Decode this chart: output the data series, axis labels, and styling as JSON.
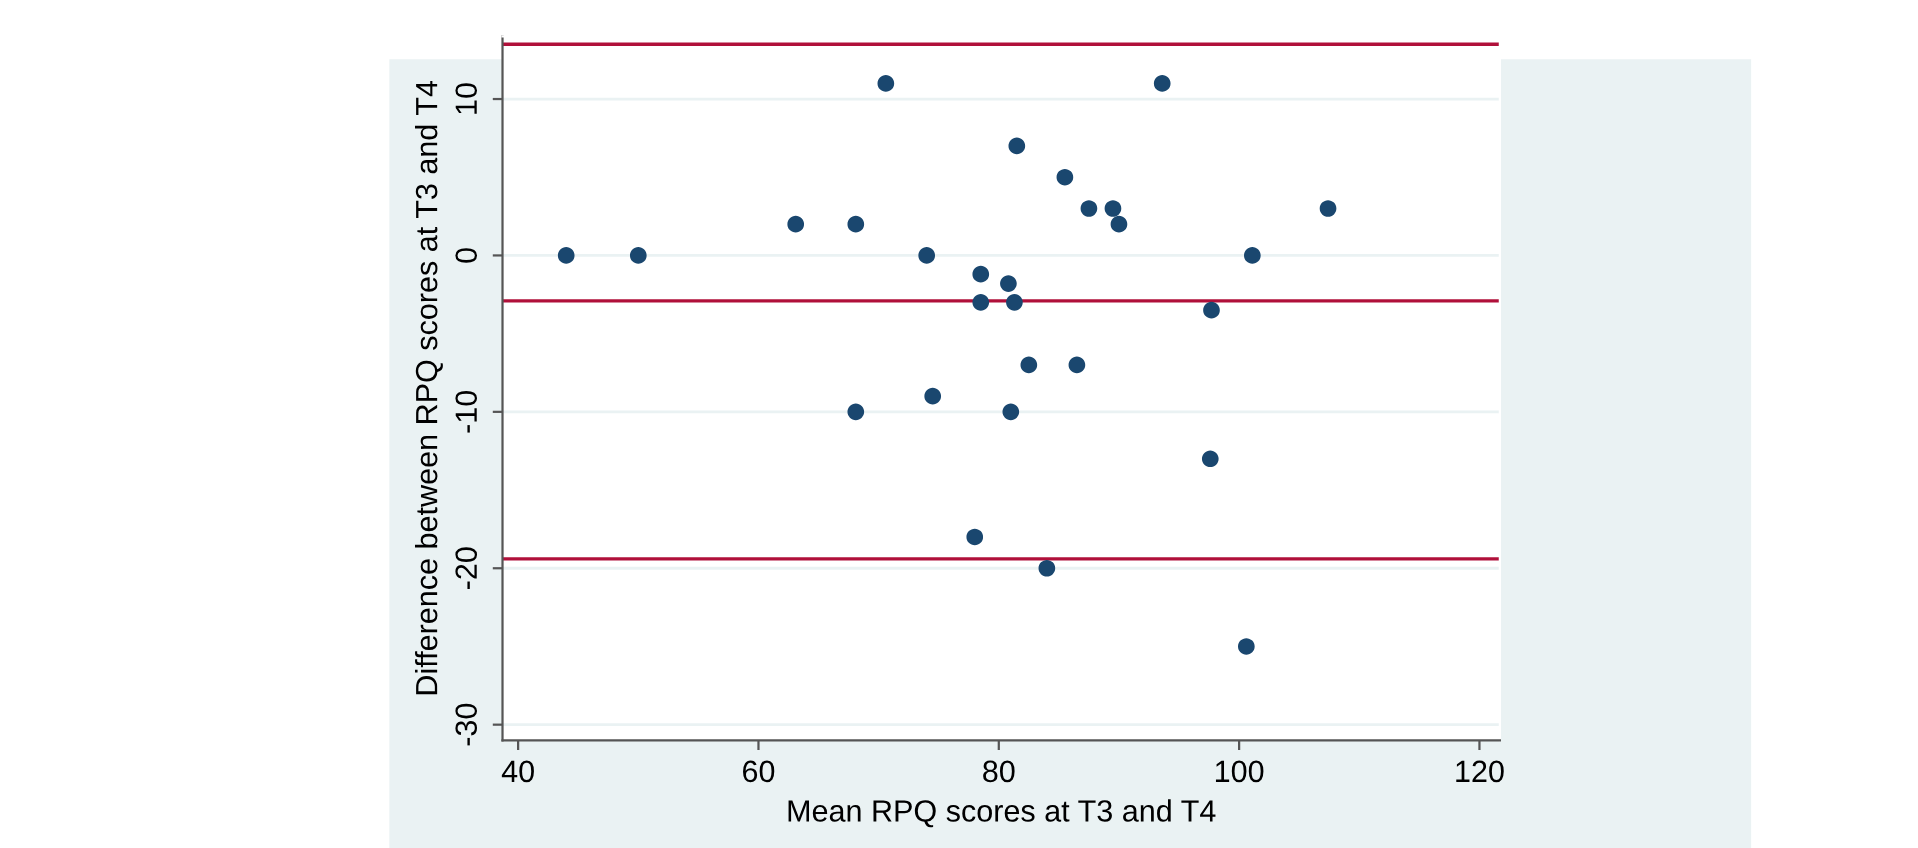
{
  "chart_data": {
    "type": "scatter",
    "xlabel": "Mean RPQ scores at T3 and T4",
    "ylabel": "Difference between RPQ scores at T3 and T4",
    "series": [
      {
        "color": "#1a476f",
        "x": [
          44,
          50,
          63.1,
          68.1,
          70.6,
          74,
          68.1,
          74.5,
          78.5,
          78.5,
          80.8,
          81.3,
          81.5,
          82.5,
          81,
          78,
          84,
          85.5,
          87.5,
          89.5,
          90,
          93.6,
          86.5,
          97.7,
          101.1,
          107.4,
          97.6,
          100.6
        ],
        "values": [
          0,
          0,
          2,
          2,
          11,
          0,
          -10,
          -9,
          -1.2,
          -3,
          -1.8,
          -3,
          7,
          -7,
          -10,
          -18,
          -20,
          5,
          3,
          3,
          2,
          11,
          -7,
          -3.5,
          0,
          3,
          -13,
          -25
        ]
      }
    ],
    "marker": "circle",
    "xlim": [
      38.7,
      121.7
    ],
    "ylim": [
      -31,
      14
    ],
    "xticks": [
      40,
      60,
      80,
      100,
      120
    ],
    "yticks": [
      {
        "value": -30,
        "label": "-30"
      },
      {
        "value": -20,
        "label": "-20"
      },
      {
        "value": -10,
        "label": "-10"
      },
      0,
      10
    ],
    "grid": "y",
    "ref_lines": [
      {
        "axis": "y",
        "value": 13.5,
        "color": "#b0103a"
      },
      {
        "axis": "y",
        "value": -2.9,
        "color": "#b0103a"
      },
      {
        "axis": "y",
        "value": -19.4,
        "color": "#b0103a"
      }
    ]
  }
}
